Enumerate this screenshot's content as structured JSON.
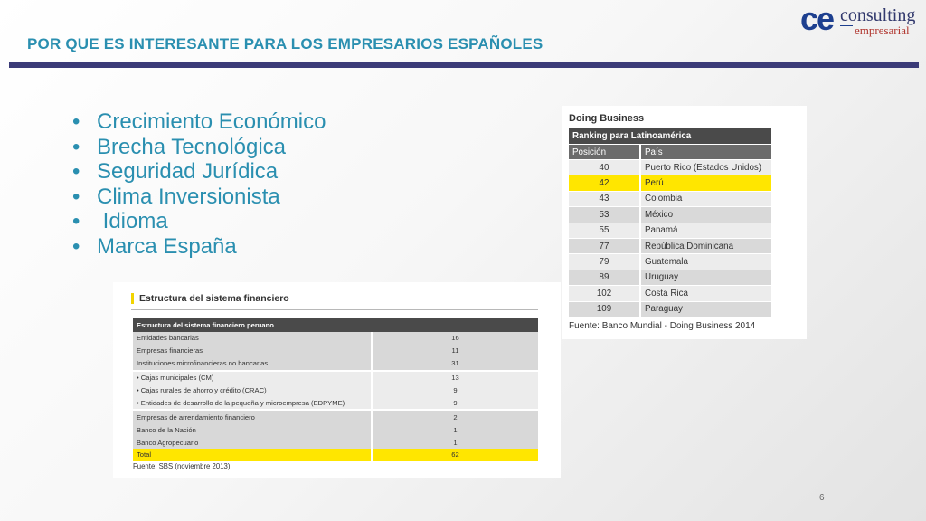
{
  "header": {
    "title": "POR QUE ES INTERESANTE PARA LOS EMPRESARIOS ESPAÑOLES",
    "logo": {
      "mark": "ce",
      "word1": "consulting",
      "word2": "empresarial"
    }
  },
  "bullets": [
    "Crecimiento Económico",
    "Brecha Tecnológica",
    "Seguridad Jurídica",
    "Clima Inversionista",
    " Idioma",
    "Marca España"
  ],
  "bullet_symbol": "•",
  "financial_table": {
    "title": "Estructura del sistema financiero",
    "header": "Estructura del sistema financiero peruano",
    "rows": [
      {
        "label": "Entidades bancarias",
        "value": "16"
      },
      {
        "label": "Empresas financieras",
        "value": "11"
      },
      {
        "label": "Instituciones microfinancieras no bancarias",
        "value": "31"
      },
      {
        "label": "• Cajas municipales (CM)",
        "value": "13"
      },
      {
        "label": "• Cajas rurales de ahorro y crédito (CRAC)",
        "value": "9"
      },
      {
        "label": "• Entidades de desarrollo de la pequeña y microempresa (EDPYME)",
        "value": "9"
      },
      {
        "label": "Empresas de arrendamiento financiero",
        "value": "2"
      },
      {
        "label": "Banco de la Nación",
        "value": "1"
      },
      {
        "label": "Banco Agropecuario",
        "value": "1"
      },
      {
        "label": "Total",
        "value": "62"
      }
    ],
    "source": "Fuente: SBS (noviembre 2013)"
  },
  "doing_business": {
    "title": "Doing Business",
    "ranking_header": "Ranking para Latinoamérica",
    "col_position": "Posición",
    "col_country": "País",
    "rows": [
      {
        "position": "40",
        "country": "Puerto Rico (Estados Unidos)"
      },
      {
        "position": "42",
        "country": "Perú",
        "highlight": true
      },
      {
        "position": "43",
        "country": "Colombia"
      },
      {
        "position": "53",
        "country": "México"
      },
      {
        "position": "55",
        "country": "Panamá"
      },
      {
        "position": "77",
        "country": "República Dominicana"
      },
      {
        "position": "79",
        "country": "Guatemala"
      },
      {
        "position": "89",
        "country": "Uruguay"
      },
      {
        "position": "102",
        "country": "Costa Rica"
      },
      {
        "position": "109",
        "country": "Paraguay"
      }
    ],
    "source": "Fuente: Banco Mundial - Doing Business 2014"
  },
  "colors": {
    "accent_title": "#2a8fb0",
    "rule": "#3b3b78",
    "highlight": "#ffe600",
    "logo_blue": "#1d3f8f",
    "logo_red": "#b0342d"
  },
  "page_number": "6"
}
